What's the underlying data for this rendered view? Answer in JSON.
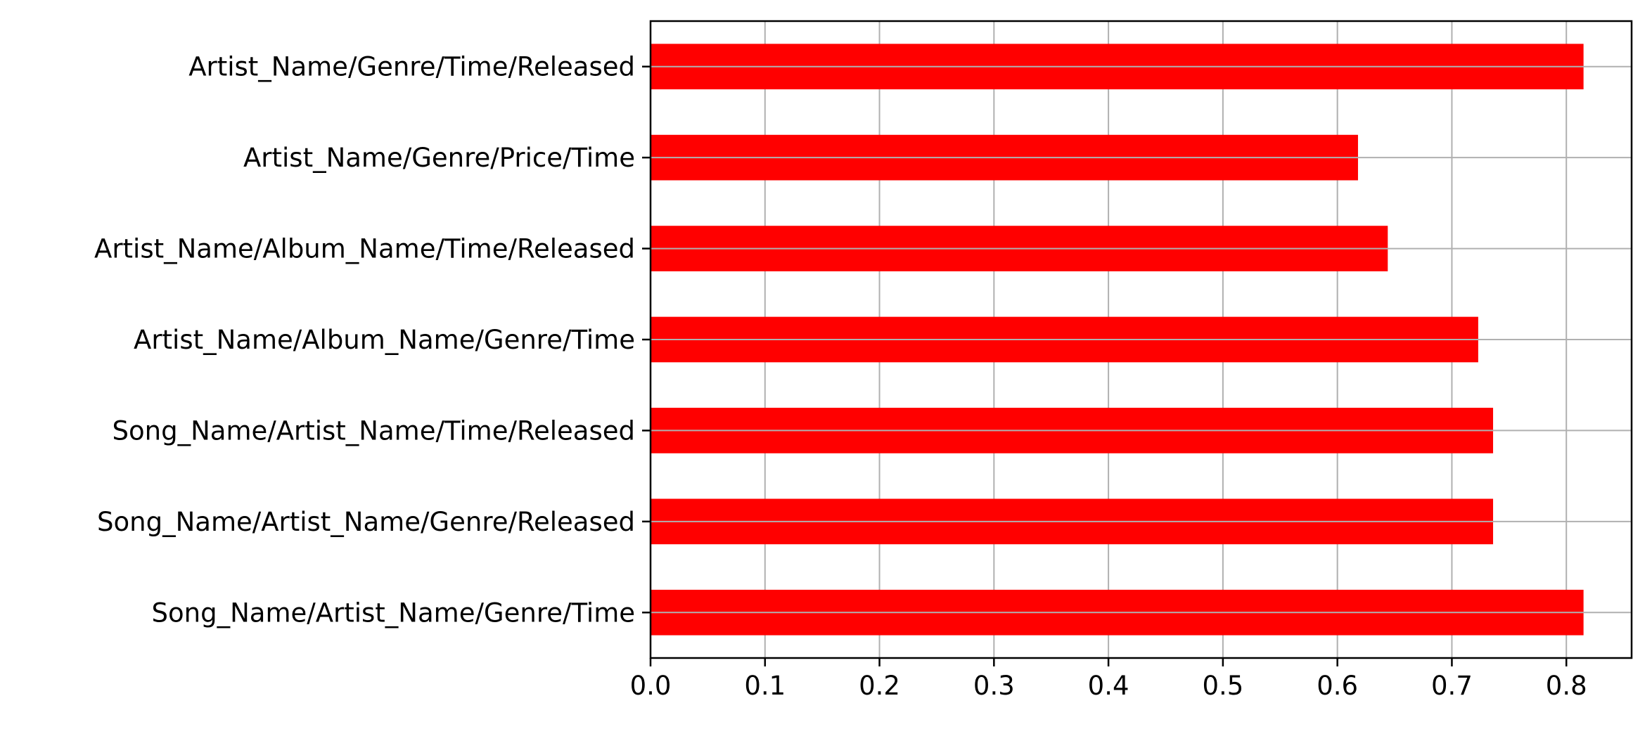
{
  "chart_data": {
    "type": "bar",
    "orientation": "horizontal",
    "title": "",
    "xlabel": "",
    "ylabel": "",
    "categories": [
      "Artist_Name/Genre/Time/Released",
      "Artist_Name/Genre/Price/Time",
      "Artist_Name/Album_Name/Time/Released",
      "Artist_Name/Album_Name/Genre/Time",
      "Song_Name/Artist_Name/Time/Released",
      "Song_Name/Artist_Name/Genre/Released",
      "Song_Name/Artist_Name/Genre/Time"
    ],
    "values": [
      0.815,
      0.618,
      0.644,
      0.723,
      0.736,
      0.736,
      0.815
    ],
    "xlim": [
      0,
      0.857
    ],
    "xticks": [
      "0.0",
      "0.1",
      "0.2",
      "0.3",
      "0.4",
      "0.5",
      "0.6",
      "0.7",
      "0.8"
    ],
    "grid": true,
    "bar_color": "#ff0000",
    "grid_color": "#b0b0b0"
  }
}
